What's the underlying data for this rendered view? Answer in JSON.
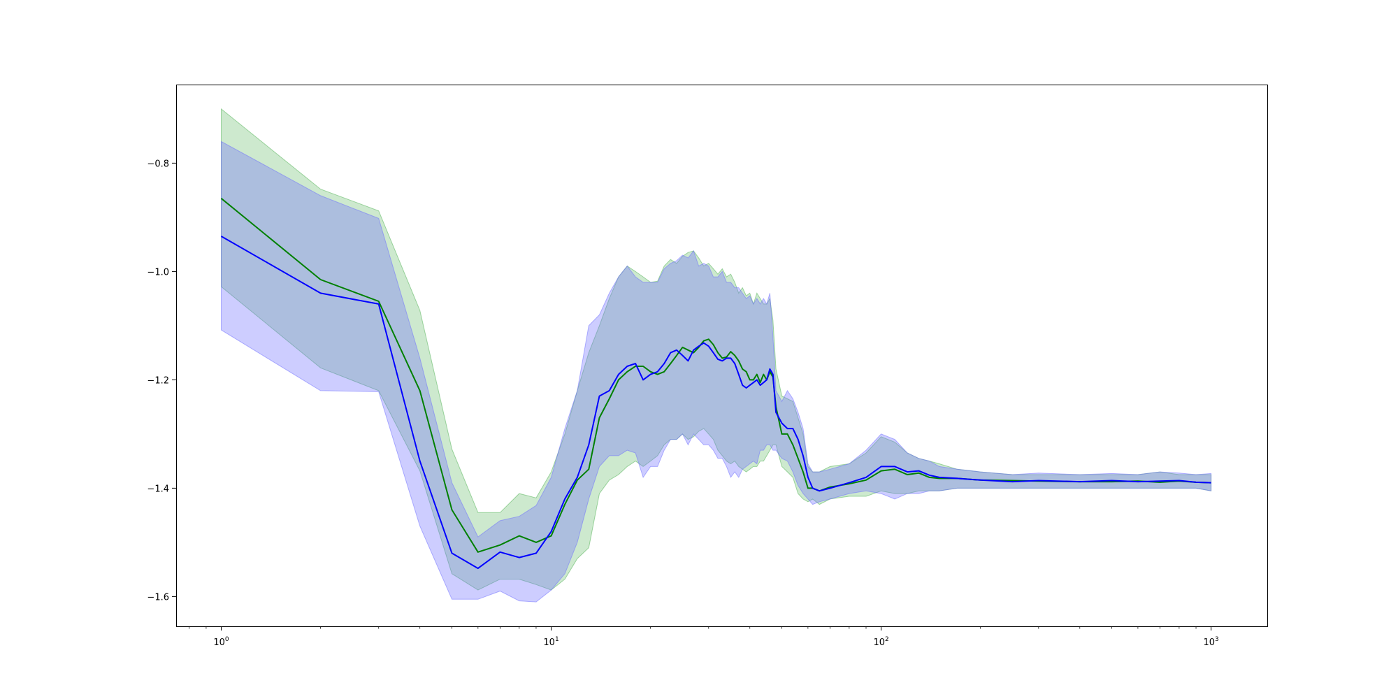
{
  "chart_data": {
    "type": "line",
    "title": "",
    "xlabel": "",
    "ylabel": "",
    "xscale": "log",
    "xlim": [
      0.73,
      1480
    ],
    "ylim": [
      -1.655,
      -0.655
    ],
    "grid": false,
    "legend": "none",
    "x_ticks": [
      {
        "value": 1,
        "base": "10",
        "exp": "0"
      },
      {
        "value": 10,
        "base": "10",
        "exp": "1"
      },
      {
        "value": 100,
        "base": "10",
        "exp": "2"
      },
      {
        "value": 1000,
        "base": "10",
        "exp": "3"
      }
    ],
    "y_ticks": [
      {
        "value": -0.8,
        "label": "−0.8"
      },
      {
        "value": -1.0,
        "label": "−1.0"
      },
      {
        "value": -1.2,
        "label": "−1.2"
      },
      {
        "value": -1.4,
        "label": "−1.4"
      },
      {
        "value": -1.6,
        "label": "−1.6"
      }
    ],
    "series": [
      {
        "color": "#008000",
        "band_color": "#4caf50",
        "x": [
          1,
          2,
          3,
          4,
          5,
          6,
          7,
          8,
          9,
          10,
          11,
          12,
          13,
          14,
          15,
          16,
          17,
          18,
          19,
          20,
          21,
          22,
          23,
          24,
          25,
          26,
          27,
          28,
          29,
          30,
          31,
          32,
          33,
          34,
          35,
          36,
          37,
          38,
          39,
          40,
          41,
          42,
          43,
          44,
          45,
          46,
          47,
          48,
          50,
          52,
          54,
          56,
          58,
          60,
          62,
          65,
          70,
          80,
          90,
          100,
          110,
          120,
          130,
          140,
          150,
          170,
          200,
          250,
          300,
          400,
          500,
          600,
          700,
          800,
          900,
          1000
        ],
        "mean": [
          -0.865,
          -1.015,
          -1.055,
          -1.22,
          -1.44,
          -1.518,
          -1.505,
          -1.488,
          -1.5,
          -1.488,
          -1.43,
          -1.385,
          -1.365,
          -1.27,
          -1.235,
          -1.2,
          -1.185,
          -1.175,
          -1.175,
          -1.185,
          -1.19,
          -1.185,
          -1.17,
          -1.155,
          -1.14,
          -1.145,
          -1.15,
          -1.14,
          -1.128,
          -1.125,
          -1.135,
          -1.15,
          -1.16,
          -1.158,
          -1.148,
          -1.155,
          -1.165,
          -1.18,
          -1.185,
          -1.2,
          -1.2,
          -1.19,
          -1.205,
          -1.19,
          -1.2,
          -1.185,
          -1.195,
          -1.25,
          -1.3,
          -1.3,
          -1.32,
          -1.345,
          -1.37,
          -1.4,
          -1.4,
          -1.405,
          -1.398,
          -1.392,
          -1.385,
          -1.368,
          -1.365,
          -1.375,
          -1.372,
          -1.38,
          -1.382,
          -1.382,
          -1.385,
          -1.386,
          -1.387,
          -1.388,
          -1.388,
          -1.387,
          -1.389,
          -1.387,
          -1.389,
          -1.39
        ],
        "upper": [
          -0.7,
          -0.848,
          -0.888,
          -1.072,
          -1.328,
          -1.445,
          -1.445,
          -1.41,
          -1.418,
          -1.37,
          -1.3,
          -1.22,
          -1.15,
          -1.1,
          -1.05,
          -1.01,
          -0.99,
          -1.0,
          -1.01,
          -1.02,
          -1.018,
          -0.99,
          -0.978,
          -0.985,
          -0.972,
          -0.965,
          -0.962,
          -0.975,
          -0.99,
          -0.985,
          -0.995,
          -1.005,
          -0.995,
          -1.01,
          -1.005,
          -1.02,
          -1.04,
          -1.03,
          -1.045,
          -1.04,
          -1.06,
          -1.04,
          -1.05,
          -1.06,
          -1.06,
          -1.05,
          -1.09,
          -1.18,
          -1.23,
          -1.235,
          -1.24,
          -1.27,
          -1.3,
          -1.36,
          -1.37,
          -1.37,
          -1.36,
          -1.355,
          -1.335,
          -1.305,
          -1.315,
          -1.335,
          -1.345,
          -1.35,
          -1.355,
          -1.365,
          -1.37,
          -1.375,
          -1.375,
          -1.375,
          -1.375,
          -1.375,
          -1.37,
          -1.375,
          -1.375,
          -1.375
        ],
        "lower": [
          -1.028,
          -1.178,
          -1.22,
          -1.368,
          -1.558,
          -1.588,
          -1.568,
          -1.568,
          -1.578,
          -1.588,
          -1.568,
          -1.53,
          -1.51,
          -1.41,
          -1.385,
          -1.375,
          -1.36,
          -1.35,
          -1.36,
          -1.35,
          -1.34,
          -1.32,
          -1.31,
          -1.31,
          -1.3,
          -1.31,
          -1.305,
          -1.295,
          -1.29,
          -1.3,
          -1.31,
          -1.33,
          -1.34,
          -1.35,
          -1.355,
          -1.35,
          -1.36,
          -1.365,
          -1.37,
          -1.365,
          -1.36,
          -1.36,
          -1.35,
          -1.35,
          -1.34,
          -1.33,
          -1.32,
          -1.32,
          -1.36,
          -1.37,
          -1.38,
          -1.41,
          -1.42,
          -1.425,
          -1.42,
          -1.43,
          -1.42,
          -1.415,
          -1.415,
          -1.405,
          -1.41,
          -1.41,
          -1.405,
          -1.405,
          -1.405,
          -1.4,
          -1.4,
          -1.4,
          -1.4,
          -1.4,
          -1.4,
          -1.4,
          -1.4,
          -1.4,
          -1.4,
          -1.405
        ]
      },
      {
        "color": "#0000ff",
        "band_color": "#6b6bff",
        "x": [
          1,
          2,
          3,
          4,
          5,
          6,
          7,
          8,
          9,
          10,
          11,
          12,
          13,
          14,
          15,
          16,
          17,
          18,
          19,
          20,
          21,
          22,
          23,
          24,
          25,
          26,
          27,
          28,
          29,
          30,
          31,
          32,
          33,
          34,
          35,
          36,
          37,
          38,
          39,
          40,
          41,
          42,
          43,
          44,
          45,
          46,
          47,
          48,
          50,
          52,
          54,
          56,
          58,
          60,
          62,
          65,
          70,
          80,
          90,
          100,
          110,
          120,
          130,
          140,
          150,
          170,
          200,
          250,
          300,
          400,
          500,
          600,
          700,
          800,
          900,
          1000
        ],
        "mean": [
          -0.935,
          -1.04,
          -1.06,
          -1.35,
          -1.52,
          -1.548,
          -1.518,
          -1.528,
          -1.52,
          -1.48,
          -1.42,
          -1.38,
          -1.32,
          -1.23,
          -1.22,
          -1.19,
          -1.175,
          -1.17,
          -1.2,
          -1.19,
          -1.185,
          -1.17,
          -1.15,
          -1.145,
          -1.155,
          -1.165,
          -1.145,
          -1.138,
          -1.132,
          -1.138,
          -1.15,
          -1.162,
          -1.165,
          -1.16,
          -1.16,
          -1.17,
          -1.19,
          -1.21,
          -1.215,
          -1.21,
          -1.205,
          -1.2,
          -1.21,
          -1.205,
          -1.2,
          -1.18,
          -1.19,
          -1.26,
          -1.28,
          -1.29,
          -1.29,
          -1.31,
          -1.34,
          -1.38,
          -1.4,
          -1.405,
          -1.4,
          -1.39,
          -1.38,
          -1.36,
          -1.36,
          -1.37,
          -1.368,
          -1.376,
          -1.38,
          -1.382,
          -1.385,
          -1.388,
          -1.386,
          -1.388,
          -1.386,
          -1.388,
          -1.387,
          -1.386,
          -1.389,
          -1.39
        ],
        "upper": [
          -0.76,
          -0.86,
          -0.902,
          -1.16,
          -1.39,
          -1.49,
          -1.46,
          -1.452,
          -1.432,
          -1.38,
          -1.29,
          -1.22,
          -1.1,
          -1.08,
          -1.04,
          -1.01,
          -0.99,
          -1.01,
          -1.02,
          -1.02,
          -1.02,
          -0.995,
          -0.985,
          -0.98,
          -0.97,
          -0.975,
          -0.962,
          -0.99,
          -0.985,
          -0.99,
          -1.01,
          -1.01,
          -1.0,
          -1.02,
          -1.02,
          -1.03,
          -1.03,
          -1.04,
          -1.05,
          -1.045,
          -1.06,
          -1.05,
          -1.06,
          -1.05,
          -1.06,
          -1.04,
          -1.12,
          -1.22,
          -1.24,
          -1.22,
          -1.235,
          -1.26,
          -1.29,
          -1.355,
          -1.37,
          -1.37,
          -1.365,
          -1.355,
          -1.33,
          -1.3,
          -1.31,
          -1.335,
          -1.345,
          -1.35,
          -1.36,
          -1.365,
          -1.37,
          -1.375,
          -1.372,
          -1.375,
          -1.373,
          -1.375,
          -1.37,
          -1.372,
          -1.375,
          -1.373
        ],
        "lower": [
          -1.108,
          -1.22,
          -1.222,
          -1.47,
          -1.605,
          -1.605,
          -1.59,
          -1.608,
          -1.61,
          -1.588,
          -1.558,
          -1.5,
          -1.42,
          -1.36,
          -1.34,
          -1.34,
          -1.33,
          -1.335,
          -1.38,
          -1.36,
          -1.36,
          -1.33,
          -1.31,
          -1.31,
          -1.3,
          -1.32,
          -1.3,
          -1.31,
          -1.32,
          -1.32,
          -1.33,
          -1.345,
          -1.345,
          -1.36,
          -1.38,
          -1.37,
          -1.38,
          -1.365,
          -1.36,
          -1.355,
          -1.35,
          -1.355,
          -1.33,
          -1.33,
          -1.32,
          -1.32,
          -1.33,
          -1.33,
          -1.345,
          -1.35,
          -1.37,
          -1.395,
          -1.41,
          -1.42,
          -1.43,
          -1.425,
          -1.42,
          -1.41,
          -1.405,
          -1.41,
          -1.42,
          -1.41,
          -1.41,
          -1.405,
          -1.405,
          -1.4,
          -1.4,
          -1.4,
          -1.4,
          -1.4,
          -1.4,
          -1.4,
          -1.4,
          -1.4,
          -1.4,
          -1.405
        ]
      }
    ]
  }
}
